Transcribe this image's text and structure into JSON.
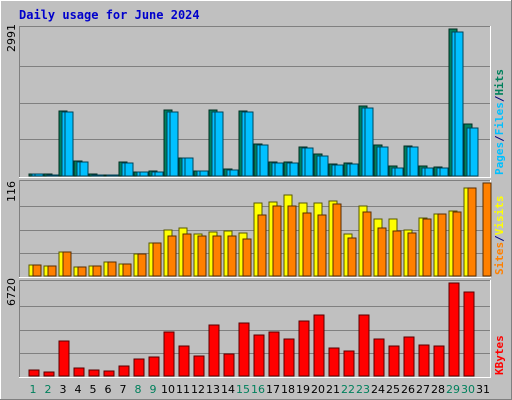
{
  "title": "Daily usage for June 2024",
  "colors": {
    "hits": "#00805c",
    "files": "#00c0ff",
    "pages": "#00c0ff",
    "visits": "#ffff00",
    "sites": "#ff8000",
    "kbytes": "#ff0000",
    "weekend_day": "#00805c",
    "weekday": "#000000",
    "panel_bg": "#c0c0c0"
  },
  "legends": {
    "top": [
      "Pages",
      "Files",
      "Hits"
    ],
    "middle": [
      "Sites",
      "Visits"
    ],
    "bottom": [
      "KBytes"
    ]
  },
  "chart_data": [
    {
      "type": "bar",
      "title": "Daily usage for June 2024",
      "panel": "hits-files-pages",
      "ymax_label": "2991",
      "ylim": [
        0,
        2991
      ],
      "categories": [
        "1",
        "2",
        "3",
        "4",
        "5",
        "6",
        "7",
        "8",
        "9",
        "10",
        "11",
        "12",
        "13",
        "14",
        "15",
        "16",
        "17",
        "18",
        "19",
        "20",
        "21",
        "22",
        "23",
        "24",
        "25",
        "26",
        "27",
        "28",
        "29",
        "30",
        "31"
      ],
      "series": [
        {
          "name": "Hits",
          "values": [
            50,
            40,
            1330,
            300,
            40,
            30,
            280,
            90,
            100,
            1340,
            370,
            110,
            1340,
            140,
            1320,
            660,
            280,
            280,
            590,
            440,
            250,
            260,
            1430,
            630,
            200,
            620,
            200,
            180,
            2991,
            1050,
            0
          ]
        },
        {
          "name": "Files",
          "values": [
            40,
            30,
            1300,
            280,
            30,
            20,
            270,
            80,
            90,
            1310,
            360,
            100,
            1310,
            130,
            1300,
            640,
            260,
            260,
            560,
            410,
            220,
            240,
            1390,
            600,
            170,
            590,
            170,
            160,
            2920,
            970,
            0
          ]
        },
        {
          "name": "Pages",
          "values": [
            40,
            30,
            1300,
            280,
            30,
            20,
            270,
            80,
            90,
            1310,
            360,
            100,
            1310,
            130,
            1300,
            640,
            260,
            260,
            560,
            410,
            220,
            240,
            1390,
            600,
            170,
            590,
            170,
            160,
            2920,
            970,
            0
          ]
        }
      ]
    },
    {
      "type": "bar",
      "panel": "visits-sites",
      "ymax_label": "116",
      "ylim": [
        0,
        116
      ],
      "categories": [
        "1",
        "2",
        "3",
        "4",
        "5",
        "6",
        "7",
        "8",
        "9",
        "10",
        "11",
        "12",
        "13",
        "14",
        "15",
        "16",
        "17",
        "18",
        "19",
        "20",
        "21",
        "22",
        "23",
        "24",
        "25",
        "26",
        "27",
        "28",
        "29",
        "30",
        "31"
      ],
      "series": [
        {
          "name": "Visits",
          "values": [
            14,
            13,
            30,
            11,
            12,
            17,
            15,
            28,
            41,
            57,
            60,
            52,
            55,
            56,
            54,
            91,
            92,
            101,
            91,
            91,
            94,
            52,
            87,
            71,
            71,
            57,
            72,
            77,
            81,
            110,
            0
          ]
        },
        {
          "name": "Sites",
          "values": [
            14,
            13,
            30,
            11,
            12,
            17,
            15,
            28,
            41,
            50,
            53,
            50,
            50,
            50,
            46,
            76,
            87,
            87,
            78,
            76,
            90,
            47,
            80,
            60,
            56,
            54,
            71,
            77,
            80,
            110,
            116
          ]
        }
      ]
    },
    {
      "type": "bar",
      "panel": "kbytes",
      "ymax_label": "6720",
      "ylim": [
        0,
        6720
      ],
      "categories": [
        "1",
        "2",
        "3",
        "4",
        "5",
        "6",
        "7",
        "8",
        "9",
        "10",
        "11",
        "12",
        "13",
        "14",
        "15",
        "16",
        "17",
        "18",
        "19",
        "20",
        "21",
        "22",
        "23",
        "24",
        "25",
        "26",
        "27",
        "28",
        "29",
        "30",
        "31"
      ],
      "series": [
        {
          "name": "KBytes",
          "values": [
            420,
            300,
            2500,
            590,
            450,
            360,
            700,
            1200,
            1400,
            3200,
            2150,
            1480,
            3700,
            1570,
            3800,
            2950,
            3150,
            2700,
            4000,
            4400,
            2050,
            1800,
            4400,
            2700,
            2150,
            2800,
            2250,
            2150,
            6720,
            6100,
            0
          ]
        }
      ]
    }
  ]
}
